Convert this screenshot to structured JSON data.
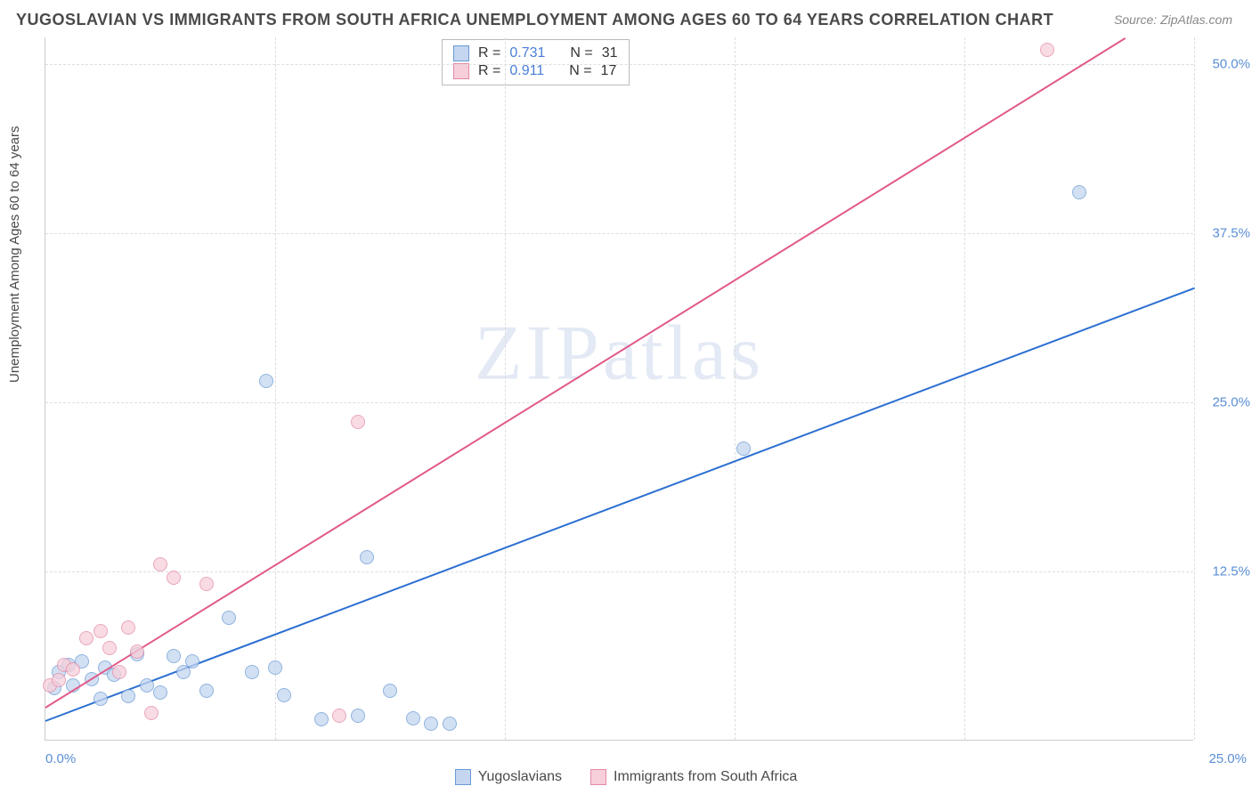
{
  "title": "YUGOSLAVIAN VS IMMIGRANTS FROM SOUTH AFRICA UNEMPLOYMENT AMONG AGES 60 TO 64 YEARS CORRELATION CHART",
  "source_label": "Source: ",
  "source_value": "ZipAtlas.com",
  "y_axis_label": "Unemployment Among Ages 60 to 64 years",
  "watermark_zip": "ZIP",
  "watermark_atlas": "atlas",
  "plot": {
    "background_color": "#ffffff",
    "grid_color": "#dddddd",
    "axis_color": "#cccccc",
    "xlim": [
      0,
      25
    ],
    "ylim": [
      0,
      52
    ],
    "y_ticks": [
      12.5,
      25.0,
      37.5,
      50.0
    ],
    "y_tick_labels": [
      "12.5%",
      "25.0%",
      "37.5%",
      "50.0%"
    ],
    "x_vgrid": [
      5,
      10,
      15,
      20,
      25
    ],
    "x_tick_left": "0.0%",
    "x_tick_right": "25.0%",
    "tick_label_color": "#5b8fd6"
  },
  "series": [
    {
      "name": "Yugoslavians",
      "fill": "#c4d6f0",
      "stroke": "#6a9ad4",
      "swatch_fill": "#c4d6f0",
      "swatch_border": "#6a9ad4",
      "line_color": "#2c6fd1",
      "r_label": "R = ",
      "r_value": "0.731",
      "n_label": "N = ",
      "n_value": "31",
      "marker_radius": 8,
      "marker_opacity": 0.75,
      "trend": {
        "x1": 0,
        "y1": 1.5,
        "x2": 25,
        "y2": 33.5
      },
      "points": [
        [
          0.2,
          3.8
        ],
        [
          0.3,
          5.0
        ],
        [
          0.5,
          5.5
        ],
        [
          0.6,
          4.0
        ],
        [
          0.8,
          5.8
        ],
        [
          1.0,
          4.5
        ],
        [
          1.2,
          3.0
        ],
        [
          1.3,
          5.3
        ],
        [
          1.5,
          4.8
        ],
        [
          1.8,
          3.2
        ],
        [
          2.0,
          6.3
        ],
        [
          2.2,
          4.0
        ],
        [
          2.5,
          3.5
        ],
        [
          2.8,
          6.2
        ],
        [
          3.0,
          5.0
        ],
        [
          3.2,
          5.8
        ],
        [
          3.5,
          3.6
        ],
        [
          4.0,
          9.0
        ],
        [
          4.5,
          5.0
        ],
        [
          4.8,
          26.5
        ],
        [
          5.0,
          5.3
        ],
        [
          5.2,
          3.3
        ],
        [
          6.0,
          1.5
        ],
        [
          6.8,
          1.8
        ],
        [
          7.0,
          13.5
        ],
        [
          7.5,
          3.6
        ],
        [
          8.0,
          1.6
        ],
        [
          8.4,
          1.2
        ],
        [
          8.8,
          1.2
        ],
        [
          15.2,
          21.5
        ],
        [
          22.5,
          40.5
        ]
      ]
    },
    {
      "name": "Immigrants from South Africa",
      "fill": "#f6cfda",
      "stroke": "#e48aa7",
      "swatch_fill": "#f6cfda",
      "swatch_border": "#e48aa7",
      "line_color": "#e15a8a",
      "r_label": "R = ",
      "r_value": "0.911",
      "n_label": "N = ",
      "n_value": "17",
      "marker_radius": 8,
      "marker_opacity": 0.75,
      "trend": {
        "x1": 0,
        "y1": 2.5,
        "x2": 23.5,
        "y2": 52
      },
      "points": [
        [
          0.1,
          4.0
        ],
        [
          0.3,
          4.4
        ],
        [
          0.4,
          5.5
        ],
        [
          0.6,
          5.2
        ],
        [
          0.9,
          7.5
        ],
        [
          1.2,
          8.0
        ],
        [
          1.4,
          6.8
        ],
        [
          1.6,
          5.0
        ],
        [
          1.8,
          8.3
        ],
        [
          2.0,
          6.5
        ],
        [
          2.3,
          2.0
        ],
        [
          2.5,
          13.0
        ],
        [
          2.8,
          12.0
        ],
        [
          3.5,
          11.5
        ],
        [
          6.4,
          1.8
        ],
        [
          6.8,
          23.5
        ],
        [
          21.8,
          51.0
        ]
      ]
    }
  ],
  "bottom_legend": {
    "items": [
      "Yugoslavians",
      "Immigrants from South Africa"
    ]
  }
}
